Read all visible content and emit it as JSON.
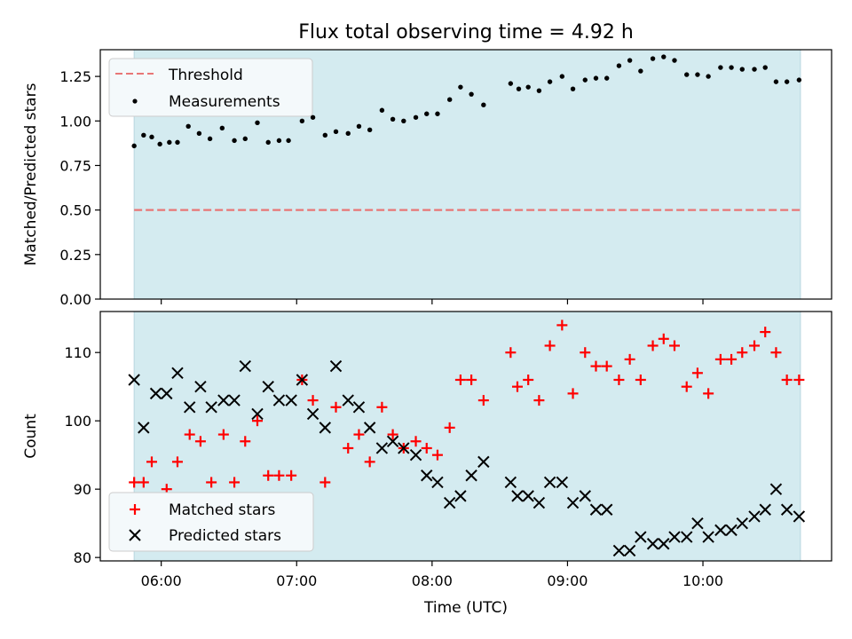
{
  "chart_data": {
    "type": "scatter",
    "title": "Flux total observing time = 4.92 h",
    "xlabel": "Time (UTC)",
    "x_ticks": [
      "06:00",
      "07:00",
      "08:00",
      "09:00",
      "10:00"
    ],
    "x_tick_hours": [
      6,
      7,
      8,
      9,
      10
    ],
    "xlim_hours": [
      5.55,
      10.95
    ],
    "observing_window_hours": [
      5.8,
      10.72
    ],
    "shade_color": "#d4ebf0",
    "panels": [
      {
        "ylabel": "Matched/Predicted stars",
        "ylim": [
          0,
          1.4
        ],
        "y_ticks": [
          "0.00",
          "0.25",
          "0.50",
          "0.75",
          "1.00",
          "1.25"
        ],
        "y_tick_values": [
          0,
          0.25,
          0.5,
          0.75,
          1.0,
          1.25
        ],
        "legend_position": "upper-left",
        "threshold": {
          "name": "Threshold",
          "value": 0.5,
          "color": "#e87676",
          "style": "dashed"
        },
        "series": [
          {
            "name": "Measurements",
            "marker": "dot",
            "color": "#000000",
            "x_hours": [
              5.8,
              5.87,
              5.93,
              5.99,
              6.06,
              6.12,
              6.2,
              6.28,
              6.36,
              6.45,
              6.54,
              6.62,
              6.71,
              6.79,
              6.87,
              6.94,
              7.04,
              7.12,
              7.21,
              7.29,
              7.38,
              7.46,
              7.54,
              7.63,
              7.71,
              7.79,
              7.88,
              7.96,
              8.04,
              8.13,
              8.21,
              8.29,
              8.38,
              8.58,
              8.64,
              8.71,
              8.79,
              8.87,
              8.96,
              9.04,
              9.13,
              9.21,
              9.29,
              9.38,
              9.46,
              9.54,
              9.63,
              9.71,
              9.79,
              9.88,
              9.96,
              10.04,
              10.13,
              10.21,
              10.29,
              10.38,
              10.46,
              10.54,
              10.62,
              10.71
            ],
            "y": [
              0.86,
              0.92,
              0.91,
              0.87,
              0.88,
              0.88,
              0.97,
              0.93,
              0.9,
              0.96,
              0.89,
              0.9,
              0.99,
              0.88,
              0.89,
              0.89,
              1.0,
              1.02,
              0.92,
              0.94,
              0.93,
              0.97,
              0.95,
              1.06,
              1.01,
              1.0,
              1.02,
              1.04,
              1.04,
              1.12,
              1.19,
              1.15,
              1.09,
              1.21,
              1.18,
              1.19,
              1.17,
              1.22,
              1.25,
              1.18,
              1.23,
              1.24,
              1.24,
              1.31,
              1.34,
              1.28,
              1.35,
              1.36,
              1.34,
              1.26,
              1.26,
              1.25,
              1.3,
              1.3,
              1.29,
              1.29,
              1.3,
              1.22,
              1.22,
              1.23
            ]
          }
        ]
      },
      {
        "ylabel": "Count",
        "ylim": [
          79.5,
          116
        ],
        "y_ticks": [
          "80",
          "90",
          "100",
          "110"
        ],
        "y_tick_values": [
          80,
          90,
          100,
          110
        ],
        "legend_position": "lower-left",
        "series": [
          {
            "name": "Matched stars",
            "marker": "plus",
            "color": "#ff0000",
            "x_hours": [
              5.8,
              5.87,
              5.93,
              6.04,
              6.12,
              6.21,
              6.29,
              6.37,
              6.46,
              6.54,
              6.62,
              6.71,
              6.79,
              6.87,
              6.96,
              7.04,
              7.12,
              7.21,
              7.29,
              7.38,
              7.46,
              7.54,
              7.63,
              7.71,
              7.79,
              7.88,
              7.96,
              8.04,
              8.13,
              8.21,
              8.29,
              8.38,
              8.58,
              8.63,
              8.71,
              8.79,
              8.87,
              8.96,
              9.04,
              9.13,
              9.21,
              9.29,
              9.38,
              9.46,
              9.54,
              9.63,
              9.71,
              9.79,
              9.88,
              9.96,
              10.04,
              10.13,
              10.21,
              10.29,
              10.38,
              10.46,
              10.54,
              10.62,
              10.71
            ],
            "y": [
              91,
              91,
              94,
              90,
              94,
              98,
              97,
              91,
              98,
              91,
              97,
              100,
              92,
              92,
              92,
              106,
              103,
              91,
              102,
              96,
              98,
              94,
              102,
              98,
              96,
              97,
              96,
              95,
              99,
              106,
              106,
              103,
              110,
              105,
              106,
              103,
              111,
              114,
              104,
              110,
              108,
              108,
              106,
              109,
              106,
              111,
              112,
              111,
              105,
              107,
              104,
              109,
              109,
              110,
              111,
              113,
              110,
              106,
              106
            ]
          },
          {
            "name": "Predicted stars",
            "marker": "x",
            "color": "#000000",
            "x_hours": [
              5.8,
              5.87,
              5.96,
              6.04,
              6.12,
              6.21,
              6.29,
              6.37,
              6.46,
              6.54,
              6.62,
              6.71,
              6.79,
              6.87,
              6.96,
              7.04,
              7.12,
              7.21,
              7.29,
              7.38,
              7.46,
              7.54,
              7.63,
              7.71,
              7.79,
              7.88,
              7.96,
              8.04,
              8.13,
              8.21,
              8.29,
              8.38,
              8.58,
              8.63,
              8.71,
              8.79,
              8.87,
              8.96,
              9.04,
              9.13,
              9.21,
              9.29,
              9.38,
              9.46,
              9.54,
              9.63,
              9.71,
              9.79,
              9.88,
              9.96,
              10.04,
              10.13,
              10.21,
              10.29,
              10.38,
              10.46,
              10.54,
              10.62,
              10.71
            ],
            "y": [
              106,
              99,
              104,
              104,
              107,
              102,
              105,
              102,
              103,
              103,
              108,
              101,
              105,
              103,
              103,
              106,
              101,
              99,
              108,
              103,
              102,
              99,
              96,
              97,
              96,
              95,
              92,
              91,
              88,
              89,
              92,
              94,
              91,
              89,
              89,
              88,
              91,
              91,
              88,
              89,
              87,
              87,
              81,
              81,
              83,
              82,
              82,
              83,
              83,
              85,
              83,
              84,
              84,
              85,
              86,
              87,
              90,
              87,
              86
            ]
          }
        ]
      }
    ]
  }
}
